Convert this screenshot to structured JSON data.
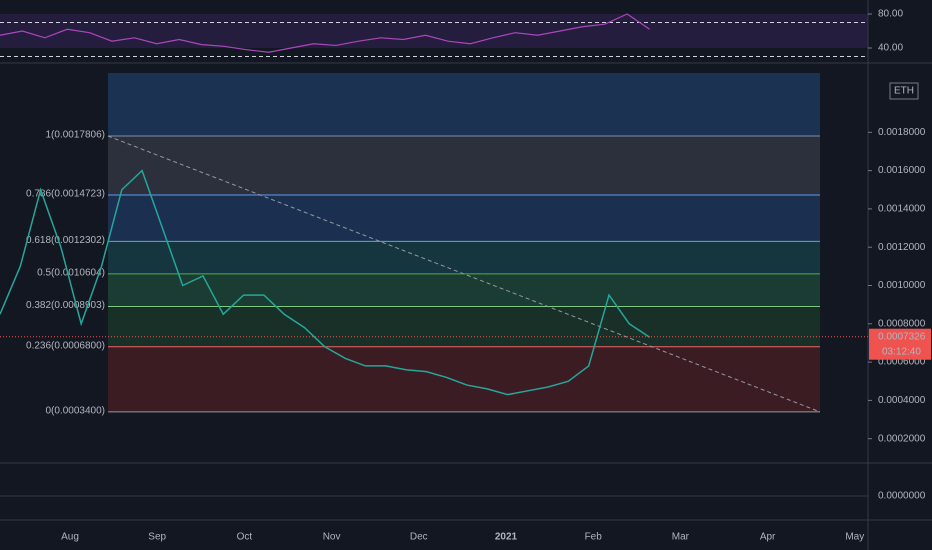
{
  "symbol_tag": "ETH",
  "rsi": {
    "ticks": [
      {
        "value": 80,
        "label": "80.00"
      },
      {
        "value": 40,
        "label": "40.00"
      }
    ],
    "bands": [
      70,
      30
    ],
    "values": [
      55,
      60,
      52,
      62,
      58,
      48,
      52,
      45,
      50,
      44,
      42,
      38,
      35,
      40,
      45,
      43,
      48,
      52,
      50,
      55,
      48,
      45,
      52,
      58,
      55,
      60,
      65,
      68,
      80,
      62
    ]
  },
  "price": {
    "yticks": [
      {
        "value": 0.0018,
        "label": "0.0018000"
      },
      {
        "value": 0.0016,
        "label": "0.0016000"
      },
      {
        "value": 0.0014,
        "label": "0.0014000"
      },
      {
        "value": 0.0012,
        "label": "0.0012000"
      },
      {
        "value": 0.001,
        "label": "0.0010000"
      },
      {
        "value": 0.0008,
        "label": "0.0008000"
      },
      {
        "value": 0.0006,
        "label": "0.0006000"
      },
      {
        "value": 0.0004,
        "label": "0.0004000"
      },
      {
        "value": 0.0002,
        "label": "0.0002000"
      }
    ],
    "values": [
      0.00085,
      0.0011,
      0.0015,
      0.0012,
      0.0008,
      0.0011,
      0.0015,
      0.0016,
      0.0013,
      0.001,
      0.00105,
      0.00085,
      0.00095,
      0.00095,
      0.00085,
      0.00078,
      0.00068,
      0.00062,
      0.00058,
      0.00058,
      0.00056,
      0.00055,
      0.00052,
      0.00048,
      0.00046,
      0.00043,
      0.00045,
      0.00047,
      0.0005,
      0.00058,
      0.00095,
      0.0008,
      0.00073
    ],
    "last": {
      "value": 0.0007326,
      "label": "0.0007326"
    },
    "countdown": "03:12:40"
  },
  "fib": [
    {
      "price": 0.0017806,
      "label": "1(0.0017806)"
    },
    {
      "price": 0.0014723,
      "label": "0.786(0.0014723)"
    },
    {
      "price": 0.0012302,
      "label": "0.618(0.0012302)"
    },
    {
      "price": 0.0010604,
      "label": "0.5(0.0010604)"
    },
    {
      "price": 0.0008903,
      "label": "0.382(0.0008903)"
    },
    {
      "price": 0.00068,
      "label": "0.236(0.0006800)"
    },
    {
      "price": 0.00034,
      "label": "0(0.0003400)"
    }
  ],
  "macd_zero": "0.0000000",
  "time_labels": [
    "Aug",
    "Sep",
    "Oct",
    "Nov",
    "Dec",
    "2021",
    "Feb",
    "Mar",
    "Apr",
    "May"
  ]
}
